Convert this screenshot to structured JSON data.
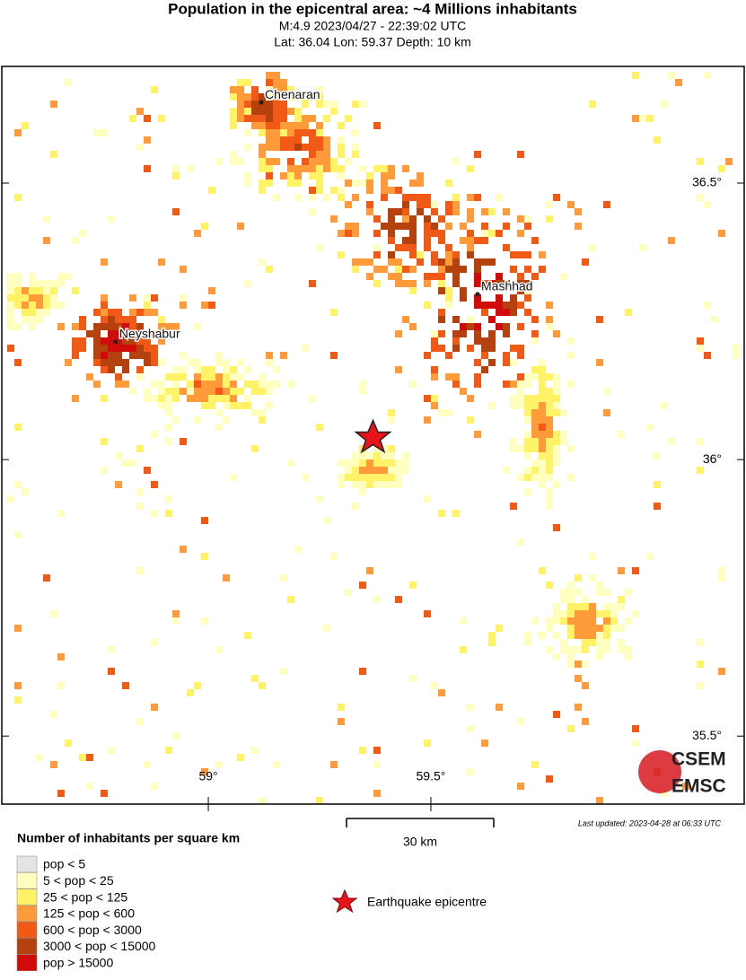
{
  "header": {
    "title": "Population in the epicentral area: ~4 Millions inhabitants",
    "line1": "M:4.9 2023/04/27 - 22:39:02 UTC",
    "line2": "Lat: 36.04 Lon: 59.37 Depth: 10 km"
  },
  "map": {
    "xlim": [
      58.536,
      60.204
    ],
    "ylim": [
      35.377,
      36.711
    ],
    "xticks": [
      {
        "value": 59,
        "label": "59°"
      },
      {
        "value": 59.5,
        "label": "59.5°"
      }
    ],
    "yticks": [
      {
        "value": 36.5,
        "label": "36.5°"
      },
      {
        "value": 36,
        "label": "36°"
      },
      {
        "value": 35.5,
        "label": "35.5°"
      }
    ],
    "epicenter": {
      "lon": 59.37,
      "lat": 36.04
    },
    "cities": [
      {
        "name": "Chenaran",
        "lon": 59.119,
        "lat": 36.646
      },
      {
        "name": "Mashhad",
        "lon": 59.605,
        "lat": 36.299
      },
      {
        "name": "Neyshabur",
        "lon": 58.792,
        "lat": 36.213
      }
    ],
    "scale_label": "30 km",
    "updated": "Last updated: 2023-04-28 at 06:33 UTC",
    "logo_top": "CSEM",
    "logo_bottom": "EMSC"
  },
  "legend": {
    "title": "Number of inhabitants per square km",
    "items": [
      {
        "label": "pop < 5",
        "color": "#e4e4e4"
      },
      {
        "label": "5 < pop < 25",
        "color": "#ffffc0"
      },
      {
        "label": "25 < pop < 125",
        "color": "#fef266"
      },
      {
        "label": "125 < pop < 600",
        "color": "#fd9a3a"
      },
      {
        "label": "600 < pop < 3000",
        "color": "#f05a16"
      },
      {
        "label": "3000 < pop < 15000",
        "color": "#b5420e"
      },
      {
        "label": "pop > 15000",
        "color": "#d10a0a"
      }
    ],
    "epicentre_label": "Earthquake epicentre"
  }
}
